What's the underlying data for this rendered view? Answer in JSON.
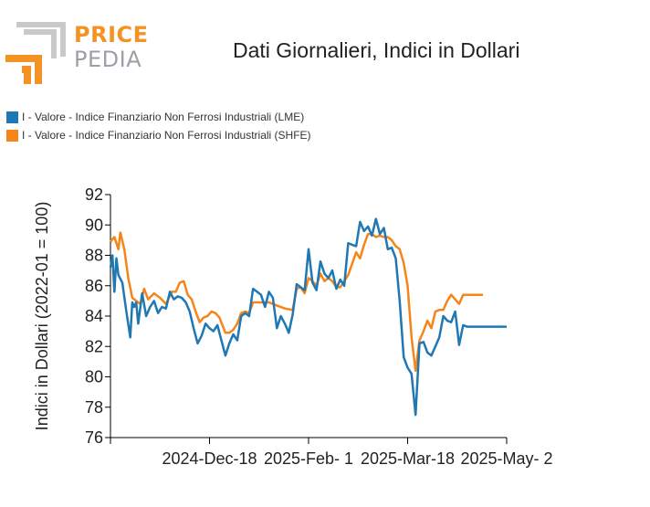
{
  "logo": {
    "line1": "PRICE",
    "line2": "PEDIA"
  },
  "chart_data": {
    "type": "line",
    "title": "Dati Giornalieri, Indici in Dollari",
    "xlabel": "",
    "ylabel": "Indici in Dollari (2022-01 = 100)",
    "ylim": [
      76,
      92
    ],
    "yticks": [
      76,
      78,
      80,
      82,
      84,
      86,
      88,
      90,
      92
    ],
    "xticks": [
      "2024-Dec-18",
      "2025-Feb- 1",
      "2025-Mar-18",
      "2025-May- 2"
    ],
    "xtick_positions": [
      0.25,
      0.5,
      0.75,
      1.0
    ],
    "legend_position": "top-left",
    "grid": false,
    "series": [
      {
        "name": "I - Valore - Indice Finanziario Non Ferrosi Industriali (LME)",
        "color": "#1f77b4",
        "x": [
          0,
          0.005,
          0.01,
          0.015,
          0.02,
          0.03,
          0.04,
          0.05,
          0.055,
          0.06,
          0.065,
          0.07,
          0.08,
          0.09,
          0.1,
          0.11,
          0.12,
          0.13,
          0.14,
          0.15,
          0.16,
          0.17,
          0.18,
          0.19,
          0.2,
          0.21,
          0.22,
          0.23,
          0.24,
          0.25,
          0.26,
          0.27,
          0.28,
          0.29,
          0.3,
          0.31,
          0.32,
          0.33,
          0.34,
          0.35,
          0.36,
          0.37,
          0.38,
          0.39,
          0.4,
          0.41,
          0.42,
          0.43,
          0.44,
          0.45,
          0.46,
          0.47,
          0.48,
          0.49,
          0.5,
          0.51,
          0.52,
          0.53,
          0.54,
          0.55,
          0.56,
          0.57,
          0.58,
          0.59,
          0.6,
          0.61,
          0.62,
          0.63,
          0.64,
          0.65,
          0.66,
          0.67,
          0.68,
          0.69,
          0.7,
          0.71,
          0.72,
          0.73,
          0.74,
          0.75,
          0.76,
          0.77,
          0.78,
          0.79,
          0.8,
          0.81,
          0.82,
          0.83,
          0.84,
          0.85,
          0.86,
          0.87,
          0.875,
          0.88,
          0.89,
          0.9,
          0.91,
          0.92,
          0.93,
          0.94,
          0.95,
          0.96,
          0.97,
          0.98,
          0.99,
          0.995,
          1.0
        ],
        "values": [
          87.2,
          88.0,
          85.6,
          87.8,
          86.7,
          86.2,
          84.3,
          82.6,
          84.9,
          84.6,
          84.9,
          83.5,
          85.5,
          84.0,
          84.6,
          85.0,
          84.2,
          84.6,
          84.5,
          85.6,
          85.1,
          85.3,
          85.2,
          84.9,
          84.3,
          83.2,
          82.2,
          82.7,
          83.5,
          83.2,
          83.0,
          83.4,
          82.4,
          81.4,
          82.2,
          82.8,
          82.4,
          84.0,
          84.2,
          84.0,
          85.8,
          85.6,
          85.4,
          84.6,
          85.6,
          85.2,
          83.2,
          84.0,
          83.5,
          82.9,
          84.1,
          86.1,
          85.9,
          85.7,
          88.4,
          86.2,
          85.7,
          87.6,
          86.8,
          86.5,
          87.0,
          85.8,
          86.4,
          86.0,
          88.8,
          88.7,
          88.6,
          90.2,
          89.6,
          89.9,
          89.3,
          90.4,
          89.4,
          89.8,
          88.4,
          88.5,
          87.8,
          85.0,
          81.3,
          80.6,
          80.2,
          77.5,
          82.2,
          82.3,
          81.6,
          81.4,
          82.0,
          82.6,
          84.0,
          83.7,
          83.6,
          84.3,
          83.2,
          82.1,
          83.4,
          83.3,
          83.3,
          83.3,
          83.3,
          83.3,
          83.3,
          83.3,
          83.3,
          83.3,
          83.3,
          83.3,
          83.3
        ]
      },
      {
        "name": "I - Valore - Indice Finanziario Non Ferrosi Industriali (SHFE)",
        "color": "#f58518",
        "x": [
          0,
          0.01,
          0.02,
          0.025,
          0.035,
          0.045,
          0.055,
          0.065,
          0.075,
          0.085,
          0.095,
          0.11,
          0.125,
          0.14,
          0.155,
          0.165,
          0.175,
          0.185,
          0.195,
          0.205,
          0.215,
          0.225,
          0.235,
          0.245,
          0.255,
          0.265,
          0.275,
          0.29,
          0.3,
          0.31,
          0.32,
          0.33,
          0.34,
          0.35,
          0.36,
          0.37,
          0.38,
          0.4,
          0.42,
          0.44,
          0.46,
          0.47,
          0.48,
          0.49,
          0.5,
          0.51,
          0.52,
          0.53,
          0.54,
          0.55,
          0.56,
          0.57,
          0.58,
          0.6,
          0.62,
          0.63,
          0.64,
          0.65,
          0.66,
          0.67,
          0.68,
          0.69,
          0.7,
          0.71,
          0.72,
          0.73,
          0.74,
          0.75,
          0.76,
          0.77,
          0.78,
          0.79,
          0.8,
          0.81,
          0.82,
          0.83,
          0.84,
          0.85,
          0.86,
          0.87,
          0.88,
          0.89,
          0.9,
          0.91,
          0.92,
          0.93,
          0.94
        ],
        "values": [
          88.9,
          89.2,
          88.4,
          89.5,
          88.4,
          86.5,
          85.2,
          85.0,
          84.8,
          85.8,
          85.1,
          85.5,
          85.2,
          84.8,
          85.6,
          85.6,
          86.2,
          86.3,
          85.4,
          85.1,
          84.3,
          83.6,
          83.9,
          84.0,
          84.3,
          84.2,
          83.9,
          82.9,
          82.9,
          83.1,
          83.5,
          84.2,
          84.3,
          84.2,
          84.9,
          84.9,
          84.9,
          84.9,
          84.7,
          84.5,
          84.4,
          85.8,
          85.9,
          85.5,
          86.5,
          86.3,
          86.0,
          86.8,
          86.3,
          86.5,
          86.3,
          85.9,
          85.9,
          86.7,
          88.2,
          87.8,
          88.7,
          89.4,
          89.4,
          89.2,
          89.3,
          89.2,
          89.2,
          89.0,
          88.6,
          88.4,
          87.5,
          86.0,
          82.6,
          80.4,
          82.4,
          83.0,
          83.7,
          83.2,
          84.3,
          84.4,
          84.4,
          85.0,
          85.4,
          85.1,
          84.8,
          85.4,
          85.4,
          85.4,
          85.4,
          85.4,
          85.4
        ]
      }
    ]
  }
}
